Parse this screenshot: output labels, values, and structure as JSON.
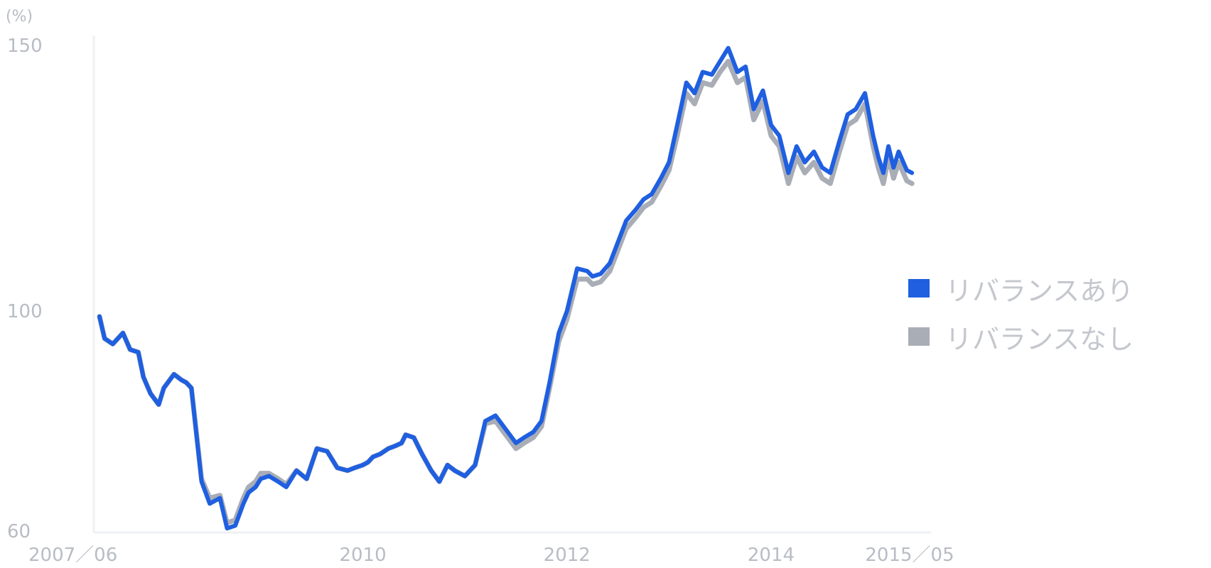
{
  "chart_data": {
    "type": "line",
    "unit_label": "(%)",
    "ylim": [
      60,
      152
    ],
    "y_ticks": [
      "150",
      "100",
      "60"
    ],
    "y_tick_values": [
      150,
      100,
      60
    ],
    "x_ticks": [
      "2007／06",
      "2010",
      "2012",
      "2014",
      "2015／05"
    ],
    "x_tick_values": [
      2007.42,
      2010.0,
      2012.0,
      2014.0,
      2015.33
    ],
    "grid": false,
    "legend_position": "right",
    "series": [
      {
        "name": "リバランスあり",
        "color": "#1f5fe0",
        "x": [
          2007.42,
          2007.47,
          2007.55,
          2007.65,
          2007.72,
          2007.8,
          2007.85,
          2007.92,
          2008.0,
          2008.05,
          2008.15,
          2008.22,
          2008.27,
          2008.32,
          2008.42,
          2008.5,
          2008.6,
          2008.67,
          2008.75,
          2008.83,
          2008.88,
          2008.95,
          2009.0,
          2009.08,
          2009.17,
          2009.25,
          2009.35,
          2009.45,
          2009.55,
          2009.65,
          2009.75,
          2009.85,
          2009.92,
          2010.0,
          2010.05,
          2010.1,
          2010.17,
          2010.25,
          2010.32,
          2010.38,
          2010.42,
          2010.5,
          2010.58,
          2010.67,
          2010.75,
          2010.83,
          2010.9,
          2011.0,
          2011.1,
          2011.2,
          2011.3,
          2011.42,
          2011.5,
          2011.58,
          2011.67,
          2011.75,
          2011.83,
          2011.92,
          2012.0,
          2012.1,
          2012.2,
          2012.25,
          2012.33,
          2012.42,
          2012.5,
          2012.58,
          2012.67,
          2012.75,
          2012.83,
          2012.92,
          2013.0,
          2013.08,
          2013.17,
          2013.25,
          2013.33,
          2013.42,
          2013.5,
          2013.58,
          2013.67,
          2013.75,
          2013.83,
          2013.92,
          2014.0,
          2014.08,
          2014.17,
          2014.25,
          2014.33,
          2014.42,
          2014.5,
          2014.58,
          2014.67,
          2014.75,
          2014.83,
          2014.92,
          2015.0,
          2015.05,
          2015.1,
          2015.15,
          2015.2,
          2015.25,
          2015.33,
          2015.38
        ],
        "y": [
          99.0,
          95.0,
          94.0,
          96.0,
          93.0,
          92.5,
          88.0,
          85.0,
          83.0,
          86.0,
          88.5,
          87.5,
          87.0,
          86.0,
          69.0,
          65.0,
          66.0,
          60.5,
          61.0,
          65.0,
          67.0,
          68.0,
          69.5,
          70.0,
          69.0,
          68.0,
          71.0,
          69.5,
          75.0,
          74.5,
          71.5,
          71.0,
          71.5,
          72.0,
          72.5,
          73.5,
          74.0,
          75.0,
          75.5,
          76.0,
          77.5,
          77.0,
          74.0,
          71.0,
          69.0,
          72.0,
          71.0,
          70.0,
          72.0,
          80.0,
          81.0,
          78.0,
          76.0,
          77.0,
          78.0,
          80.0,
          87.0,
          96.0,
          100.0,
          108.0,
          107.5,
          106.5,
          107.0,
          109.0,
          113.0,
          117.0,
          119.0,
          121.0,
          122.0,
          125.0,
          128.0,
          135.0,
          143.0,
          141.0,
          145.0,
          144.5,
          147.0,
          149.5,
          145.0,
          146.0,
          138.0,
          141.5,
          135.0,
          133.0,
          126.0,
          131.0,
          128.0,
          130.0,
          127.0,
          126.0,
          132.0,
          137.0,
          138.0,
          141.0,
          133.0,
          129.0,
          126.0,
          131.0,
          127.0,
          130.0,
          126.5,
          126.0
        ],
        "note": "values estimated from the plotted line"
      },
      {
        "name": "リバランスなし",
        "color": "#a9adb6",
        "x": [
          2007.42,
          2007.47,
          2007.55,
          2007.65,
          2007.72,
          2007.8,
          2007.85,
          2007.92,
          2008.0,
          2008.05,
          2008.15,
          2008.22,
          2008.27,
          2008.32,
          2008.42,
          2008.5,
          2008.6,
          2008.67,
          2008.75,
          2008.83,
          2008.88,
          2008.95,
          2009.0,
          2009.08,
          2009.17,
          2009.25,
          2009.35,
          2009.45,
          2009.55,
          2009.65,
          2009.75,
          2009.85,
          2009.92,
          2010.0,
          2010.05,
          2010.1,
          2010.17,
          2010.25,
          2010.32,
          2010.38,
          2010.42,
          2010.5,
          2010.58,
          2010.67,
          2010.75,
          2010.83,
          2010.9,
          2011.0,
          2011.1,
          2011.2,
          2011.3,
          2011.42,
          2011.5,
          2011.58,
          2011.67,
          2011.75,
          2011.83,
          2011.92,
          2012.0,
          2012.1,
          2012.2,
          2012.25,
          2012.33,
          2012.42,
          2012.5,
          2012.58,
          2012.67,
          2012.75,
          2012.83,
          2012.92,
          2013.0,
          2013.08,
          2013.17,
          2013.25,
          2013.33,
          2013.42,
          2013.5,
          2013.58,
          2013.67,
          2013.75,
          2013.83,
          2013.92,
          2014.0,
          2014.08,
          2014.17,
          2014.25,
          2014.33,
          2014.42,
          2014.5,
          2014.58,
          2014.67,
          2014.75,
          2014.83,
          2014.92,
          2015.0,
          2015.05,
          2015.1,
          2015.15,
          2015.2,
          2015.25,
          2015.33,
          2015.38
        ],
        "y": [
          99.0,
          95.0,
          94.0,
          96.0,
          93.0,
          92.5,
          88.0,
          85.0,
          83.0,
          86.0,
          88.5,
          87.5,
          87.0,
          86.0,
          69.5,
          66.0,
          66.5,
          61.5,
          62.0,
          66.0,
          68.0,
          69.0,
          70.5,
          70.5,
          69.5,
          68.5,
          71.0,
          69.5,
          75.0,
          74.5,
          71.5,
          71.0,
          71.5,
          72.0,
          72.5,
          73.5,
          74.0,
          75.0,
          75.5,
          76.0,
          77.5,
          77.0,
          74.0,
          71.0,
          69.0,
          72.0,
          71.0,
          70.0,
          72.0,
          79.5,
          80.0,
          77.0,
          75.0,
          76.0,
          77.0,
          79.0,
          86.0,
          94.5,
          98.5,
          106.0,
          106.0,
          105.0,
          105.5,
          107.5,
          111.5,
          115.5,
          117.5,
          119.5,
          120.5,
          123.5,
          126.5,
          133.0,
          141.0,
          139.0,
          143.0,
          142.5,
          145.0,
          147.0,
          143.0,
          144.0,
          136.0,
          139.5,
          133.0,
          131.0,
          124.0,
          129.0,
          126.0,
          128.0,
          125.0,
          124.0,
          130.0,
          135.0,
          136.0,
          139.0,
          131.0,
          127.0,
          124.0,
          129.0,
          125.0,
          128.0,
          124.5,
          124.0
        ],
        "note": "values estimated from the plotted line"
      }
    ]
  }
}
